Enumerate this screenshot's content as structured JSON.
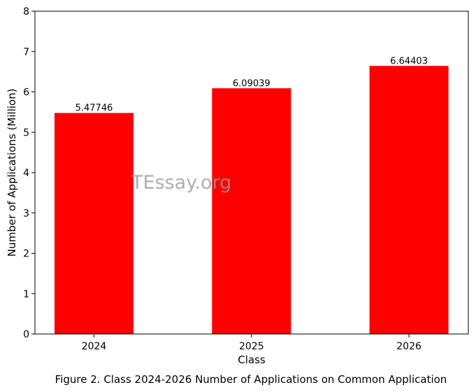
{
  "chart_data": {
    "type": "bar",
    "categories": [
      "2024",
      "2025",
      "2026"
    ],
    "values": [
      5.47746,
      6.09039,
      6.64403
    ],
    "data_labels": [
      "5.47746",
      "6.09039",
      "6.64403"
    ],
    "xlabel": "Class",
    "ylabel": "Number of Applications (Million)",
    "ylim": [
      0,
      8
    ],
    "yticks": [
      0,
      1,
      2,
      3,
      4,
      5,
      6,
      7,
      8
    ],
    "grid": false,
    "bar_color": "#ff0000"
  },
  "caption": "Figure 2. Class 2024-2026 Number of Applications on Common Application",
  "watermark": "TEssay.org"
}
